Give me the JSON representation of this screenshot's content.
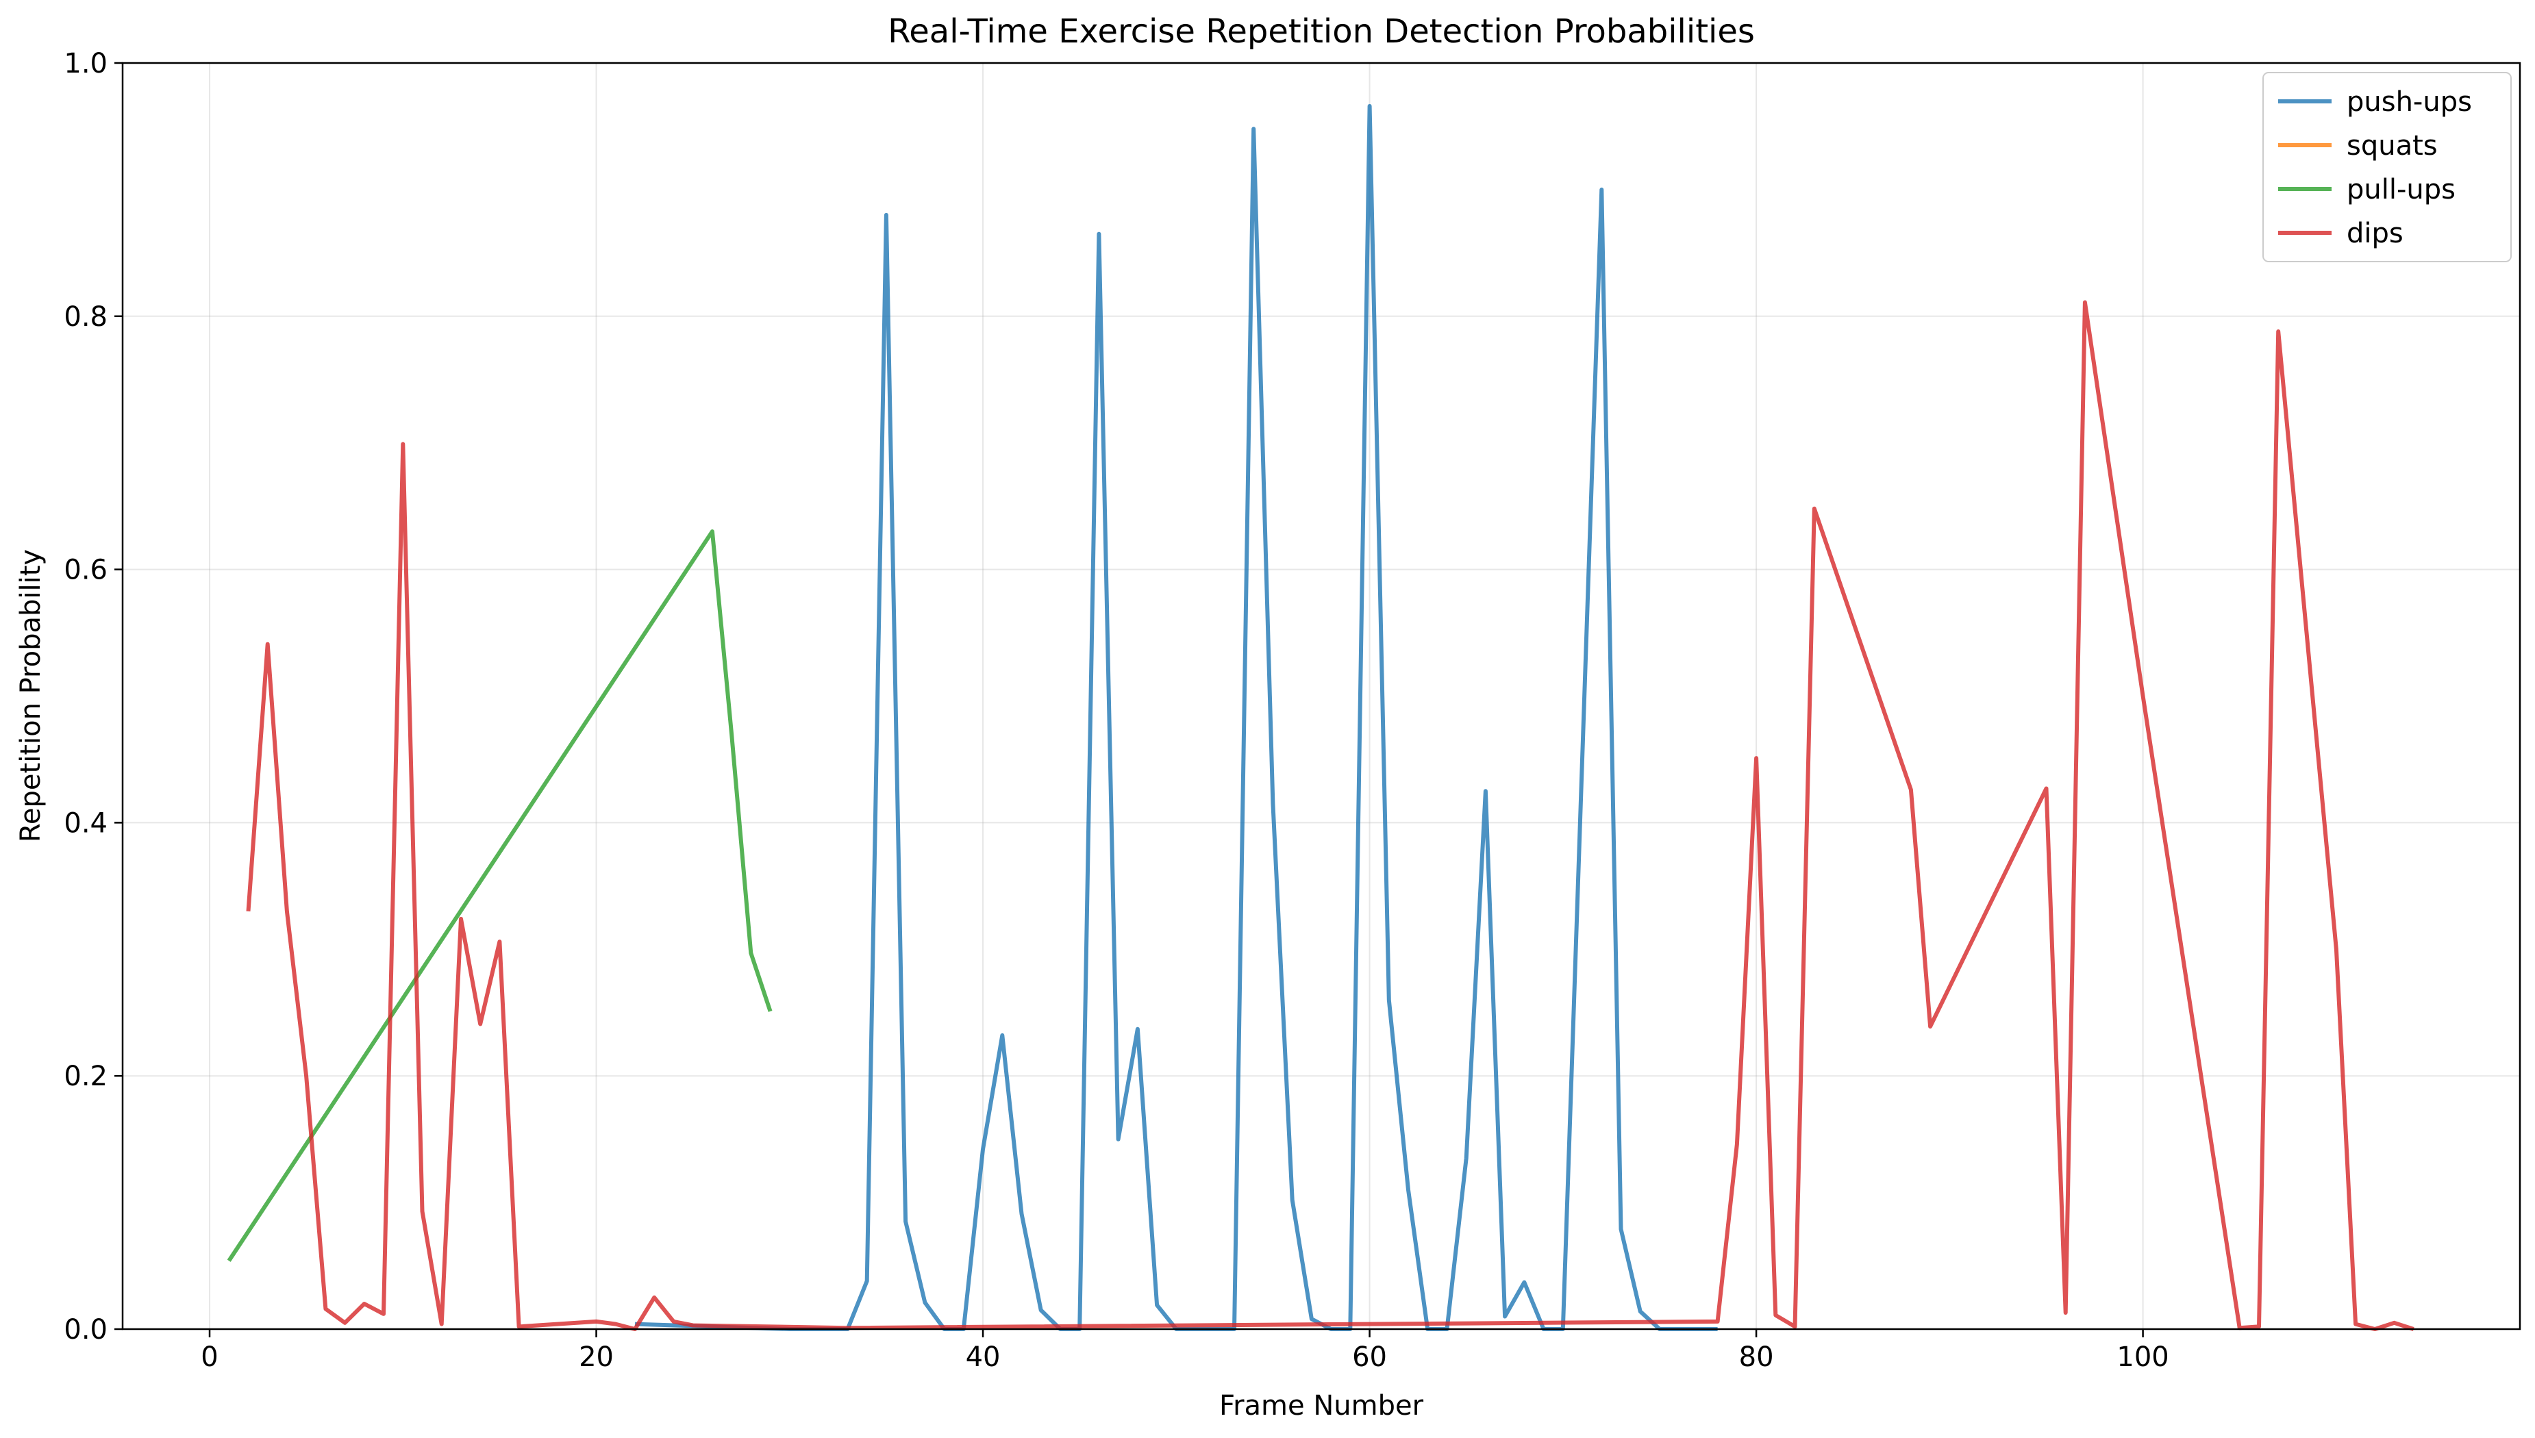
{
  "chart_data": {
    "type": "line",
    "title": "Real-Time Exercise Repetition Detection Probabilities",
    "xlabel": "Frame Number",
    "ylabel": "Repetition Probability",
    "xlim": [
      -4.5,
      119.5
    ],
    "ylim": [
      0,
      1.0
    ],
    "xticks": [
      0,
      20,
      40,
      60,
      80,
      100
    ],
    "yticks": [
      0.0,
      0.2,
      0.4,
      0.6,
      0.8,
      1.0
    ],
    "xtick_labels": [
      "0",
      "20",
      "40",
      "60",
      "80",
      "100"
    ],
    "ytick_labels": [
      "0.0",
      "0.2",
      "0.4",
      "0.6",
      "0.8",
      "1.0"
    ],
    "grid": true,
    "legend_position": "top-right",
    "series": [
      {
        "name": "push-ups",
        "color": "#1f77b4",
        "points": [
          [
            22,
            0.004
          ],
          [
            30,
            0.0
          ],
          [
            33,
            0.0
          ],
          [
            34,
            0.038
          ],
          [
            35,
            0.88
          ],
          [
            36,
            0.085
          ],
          [
            37,
            0.021
          ],
          [
            38,
            0.0
          ],
          [
            39,
            0.0
          ],
          [
            40,
            0.142
          ],
          [
            41,
            0.232
          ],
          [
            42,
            0.091
          ],
          [
            43,
            0.015
          ],
          [
            44,
            0.0
          ],
          [
            45,
            0.0
          ],
          [
            46,
            0.865
          ],
          [
            47,
            0.15
          ],
          [
            48,
            0.237
          ],
          [
            49,
            0.019
          ],
          [
            50,
            0.0
          ],
          [
            53,
            0.0
          ],
          [
            54,
            0.948
          ],
          [
            55,
            0.415
          ],
          [
            56,
            0.102
          ],
          [
            57,
            0.008
          ],
          [
            58,
            0.0
          ],
          [
            59,
            0.0
          ],
          [
            60,
            0.966
          ],
          [
            61,
            0.26
          ],
          [
            62,
            0.11
          ],
          [
            63,
            0.0
          ],
          [
            64,
            0.0
          ],
          [
            65,
            0.135
          ],
          [
            66,
            0.425
          ],
          [
            67,
            0.01
          ],
          [
            68,
            0.037
          ],
          [
            69,
            0.0
          ],
          [
            70,
            0.0
          ],
          [
            71,
            0.45
          ],
          [
            72,
            0.9
          ],
          [
            73,
            0.079
          ],
          [
            74,
            0.014
          ],
          [
            75,
            0.0
          ],
          [
            78,
            0.0
          ]
        ]
      },
      {
        "name": "squats",
        "color": "#ff7f0e",
        "points": []
      },
      {
        "name": "pull-ups",
        "color": "#2ca02c",
        "points": [
          [
            1,
            0.054
          ],
          [
            26,
            0.63
          ],
          [
            27,
            0.47
          ],
          [
            28,
            0.297
          ],
          [
            29,
            0.251
          ]
        ]
      },
      {
        "name": "dips",
        "color": "#d62728",
        "points": [
          [
            2,
            0.33
          ],
          [
            3,
            0.541
          ],
          [
            4,
            0.33
          ],
          [
            5,
            0.2
          ],
          [
            6,
            0.016
          ],
          [
            7,
            0.005
          ],
          [
            8,
            0.02
          ],
          [
            9,
            0.012
          ],
          [
            10,
            0.699
          ],
          [
            11,
            0.093
          ],
          [
            12,
            0.004
          ],
          [
            13,
            0.324
          ],
          [
            14,
            0.241
          ],
          [
            15,
            0.306
          ],
          [
            16,
            0.002
          ],
          [
            20,
            0.006
          ],
          [
            21,
            0.004
          ],
          [
            22,
            0.0
          ],
          [
            23,
            0.025
          ],
          [
            24,
            0.006
          ],
          [
            25,
            0.003
          ],
          [
            33,
            0.001
          ],
          [
            78,
            0.006
          ],
          [
            79,
            0.146
          ],
          [
            80,
            0.451
          ],
          [
            81,
            0.011
          ],
          [
            82,
            0.002
          ],
          [
            83,
            0.648
          ],
          [
            88,
            0.426
          ],
          [
            89,
            0.239
          ],
          [
            95,
            0.427
          ],
          [
            96,
            0.013
          ],
          [
            97,
            0.811
          ],
          [
            100,
            0.5
          ],
          [
            105,
            0.001
          ],
          [
            106,
            0.002
          ],
          [
            107,
            0.788
          ],
          [
            110,
            0.3
          ],
          [
            111,
            0.004
          ],
          [
            112,
            0.0
          ],
          [
            113,
            0.005
          ],
          [
            114,
            0.0
          ]
        ]
      }
    ]
  }
}
